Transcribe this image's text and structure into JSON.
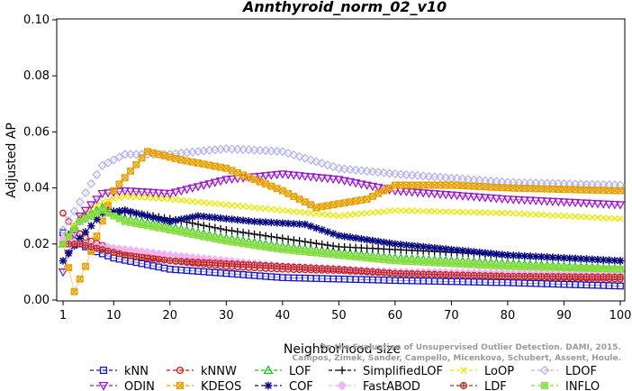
{
  "chart_data": {
    "type": "line",
    "title": "Annthyroid_norm_02_v10",
    "xlabel": "Neighborhood size",
    "ylabel": "Adjusted AP",
    "xlim": [
      1,
      100
    ],
    "ylim": [
      0.0,
      0.1
    ],
    "x_ticks": [
      "1",
      "10",
      "20",
      "30",
      "40",
      "50",
      "60",
      "70",
      "80",
      "90",
      "100"
    ],
    "y_ticks": [
      "0.00",
      "0.02",
      "0.04",
      "0.06",
      "0.08",
      "0.10"
    ],
    "legend_position": "bottom",
    "watermark": "Campos, Zimek, Sander, Campello, Micenkova, Schubert, Assent, Houle. On the Evaluation of Unsupervised Outlier Detection. DAMI, 2015.",
    "series": [
      {
        "name": "kNN",
        "color": "#1414d0",
        "marker": "square",
        "anchors": [
          [
            1,
            0.024
          ],
          [
            3,
            0.021
          ],
          [
            6,
            0.018
          ],
          [
            10,
            0.015
          ],
          [
            20,
            0.011
          ],
          [
            30,
            0.0095
          ],
          [
            40,
            0.008
          ],
          [
            50,
            0.0075
          ],
          [
            60,
            0.007
          ],
          [
            80,
            0.0062
          ],
          [
            100,
            0.005
          ]
        ]
      },
      {
        "name": "kNNW",
        "color": "#d01414",
        "marker": "circle",
        "anchors": [
          [
            1,
            0.031
          ],
          [
            3,
            0.025
          ],
          [
            6,
            0.021
          ],
          [
            10,
            0.018
          ],
          [
            20,
            0.014
          ],
          [
            30,
            0.012
          ],
          [
            40,
            0.011
          ],
          [
            50,
            0.0105
          ],
          [
            60,
            0.0095
          ],
          [
            80,
            0.0085
          ],
          [
            100,
            0.0075
          ]
        ]
      },
      {
        "name": "LOF",
        "color": "#18c418",
        "marker": "triangle-up",
        "anchors": [
          [
            1,
            0.02
          ],
          [
            4,
            0.029
          ],
          [
            8,
            0.033
          ],
          [
            12,
            0.029
          ],
          [
            20,
            0.026
          ],
          [
            30,
            0.022
          ],
          [
            40,
            0.019
          ],
          [
            50,
            0.017
          ],
          [
            60,
            0.015
          ],
          [
            80,
            0.013
          ],
          [
            100,
            0.011
          ]
        ]
      },
      {
        "name": "SimplifiedLOF",
        "color": "#000000",
        "marker": "plus",
        "anchors": [
          [
            1,
            0.021
          ],
          [
            4,
            0.028
          ],
          [
            8,
            0.032
          ],
          [
            14,
            0.031
          ],
          [
            20,
            0.029
          ],
          [
            30,
            0.025
          ],
          [
            40,
            0.022
          ],
          [
            50,
            0.019
          ],
          [
            60,
            0.018
          ],
          [
            80,
            0.016
          ],
          [
            100,
            0.014
          ]
        ]
      },
      {
        "name": "LoOP",
        "color": "#e8e800",
        "marker": "x",
        "anchors": [
          [
            1,
            0.02
          ],
          [
            4,
            0.03
          ],
          [
            8,
            0.035
          ],
          [
            12,
            0.037
          ],
          [
            20,
            0.036
          ],
          [
            30,
            0.034
          ],
          [
            40,
            0.032
          ],
          [
            50,
            0.03
          ],
          [
            60,
            0.032
          ],
          [
            80,
            0.031
          ],
          [
            100,
            0.029
          ]
        ]
      },
      {
        "name": "LDOF",
        "color": "#b4b4ee",
        "marker": "diamond",
        "anchors": [
          [
            1,
            0.025
          ],
          [
            4,
            0.035
          ],
          [
            8,
            0.048
          ],
          [
            12,
            0.052
          ],
          [
            20,
            0.052
          ],
          [
            30,
            0.054
          ],
          [
            40,
            0.053
          ],
          [
            50,
            0.047
          ],
          [
            60,
            0.045
          ],
          [
            80,
            0.042
          ],
          [
            100,
            0.041
          ]
        ]
      },
      {
        "name": "ODIN",
        "color": "#9a18c8",
        "marker": "triangle-down",
        "anchors": [
          [
            1,
            0.01
          ],
          [
            4,
            0.03
          ],
          [
            8,
            0.038
          ],
          [
            12,
            0.039
          ],
          [
            20,
            0.038
          ],
          [
            30,
            0.043
          ],
          [
            40,
            0.045
          ],
          [
            50,
            0.043
          ],
          [
            60,
            0.039
          ],
          [
            80,
            0.036
          ],
          [
            100,
            0.034
          ]
        ]
      },
      {
        "name": "KDEOS",
        "color": "#e8a000",
        "marker": "square-x",
        "anchors": [
          [
            1,
            0.02
          ],
          [
            3,
            0.003
          ],
          [
            5,
            0.012
          ],
          [
            10,
            0.039
          ],
          [
            16,
            0.053
          ],
          [
            22,
            0.05
          ],
          [
            30,
            0.047
          ],
          [
            40,
            0.039
          ],
          [
            46,
            0.033
          ],
          [
            55,
            0.036
          ],
          [
            60,
            0.041
          ],
          [
            70,
            0.041
          ],
          [
            80,
            0.04
          ],
          [
            100,
            0.039
          ]
        ]
      },
      {
        "name": "COF",
        "color": "#080880",
        "marker": "asterisk",
        "anchors": [
          [
            1,
            0.014
          ],
          [
            4,
            0.022
          ],
          [
            8,
            0.031
          ],
          [
            12,
            0.032
          ],
          [
            20,
            0.028
          ],
          [
            25,
            0.03
          ],
          [
            35,
            0.028
          ],
          [
            44,
            0.027
          ],
          [
            50,
            0.023
          ],
          [
            60,
            0.02
          ],
          [
            80,
            0.016
          ],
          [
            100,
            0.014
          ]
        ]
      },
      {
        "name": "FastABOD",
        "color": "#f4b4f0",
        "marker": "diamond-filled",
        "anchors": [
          [
            1,
            0.022
          ],
          [
            4,
            0.02
          ],
          [
            8,
            0.019
          ],
          [
            12,
            0.018
          ],
          [
            20,
            0.016
          ],
          [
            30,
            0.014
          ],
          [
            40,
            0.012
          ],
          [
            50,
            0.011
          ],
          [
            60,
            0.01
          ],
          [
            80,
            0.0095
          ],
          [
            100,
            0.009
          ]
        ]
      },
      {
        "name": "LDF",
        "color": "#c02828",
        "marker": "circle-plus",
        "anchors": [
          [
            1,
            0.02
          ],
          [
            4,
            0.02
          ],
          [
            8,
            0.018
          ],
          [
            12,
            0.016
          ],
          [
            20,
            0.014
          ],
          [
            30,
            0.013
          ],
          [
            40,
            0.012
          ],
          [
            50,
            0.011
          ],
          [
            60,
            0.0095
          ],
          [
            80,
            0.0085
          ],
          [
            100,
            0.0082
          ]
        ]
      },
      {
        "name": "INFLO",
        "color": "#88dd44",
        "marker": "square-star",
        "anchors": [
          [
            1,
            0.02
          ],
          [
            4,
            0.028
          ],
          [
            8,
            0.032
          ],
          [
            12,
            0.028
          ],
          [
            20,
            0.025
          ],
          [
            30,
            0.021
          ],
          [
            40,
            0.018
          ],
          [
            50,
            0.016
          ],
          [
            60,
            0.014
          ],
          [
            80,
            0.012
          ],
          [
            100,
            0.011
          ]
        ]
      }
    ]
  }
}
